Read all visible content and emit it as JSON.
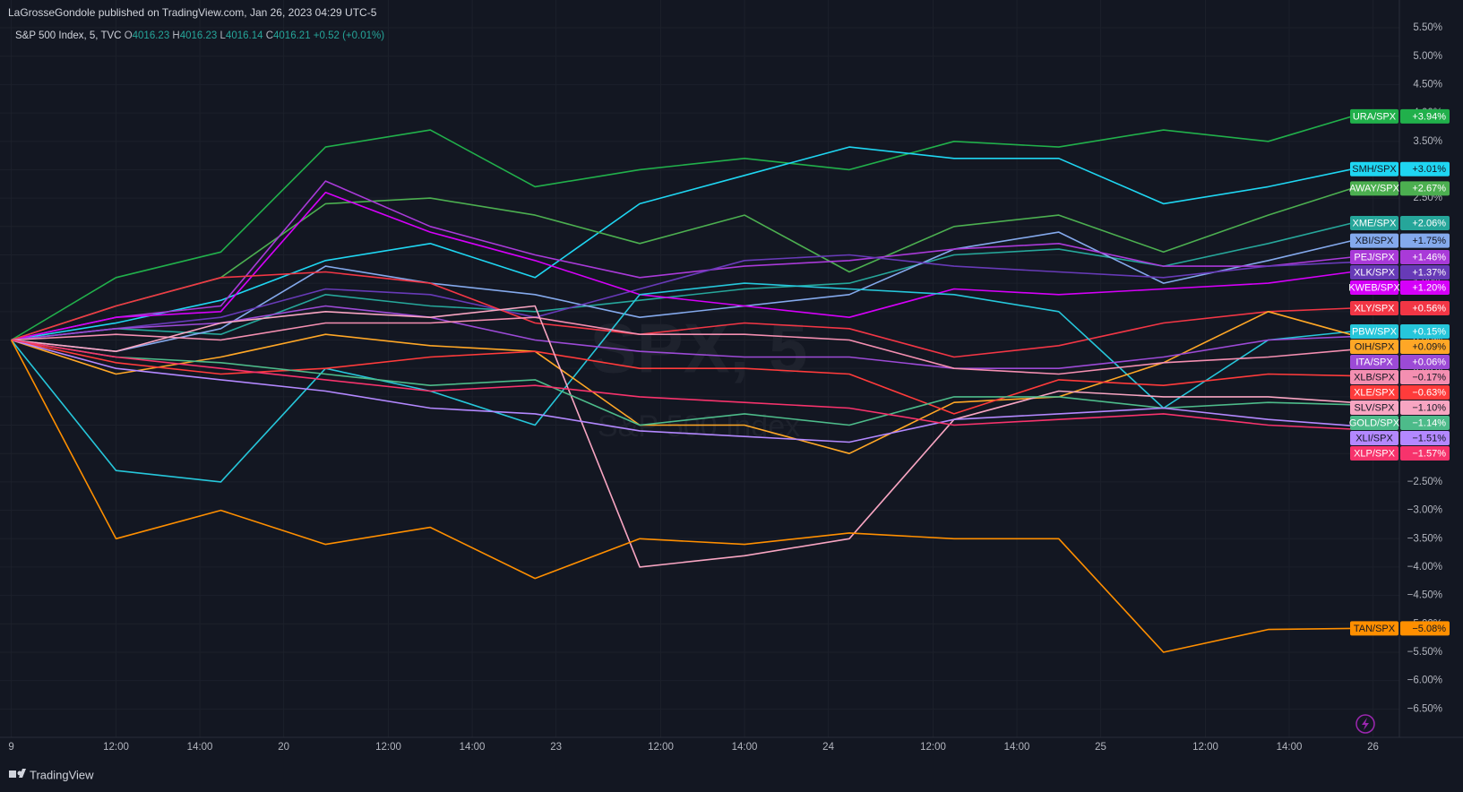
{
  "header": {
    "attribution": "LaGrosseGondole published on TradingView.com, Jan 26, 2023 04:29 UTC-5",
    "symbol": "S&P 500 Index, 5, TVC",
    "ohlc": [
      {
        "key": "O",
        "value": "4016.23"
      },
      {
        "key": "H",
        "value": "4016.23"
      },
      {
        "key": "L",
        "value": "4016.14"
      },
      {
        "key": "C",
        "value": "4016.21"
      }
    ],
    "change": "+0.52 (+0.01%)",
    "watermark": "SPX, 5",
    "watermark_sub": "S&P 500 Index"
  },
  "footer": {
    "brand": "TradingView"
  },
  "chart_data": {
    "type": "line",
    "x": [
      0,
      2.5,
      5,
      7.5,
      10,
      12.5,
      15,
      17.5,
      20,
      22.5,
      25,
      27.5,
      30,
      32
    ],
    "xlim": [
      -0.27,
      33.13
    ],
    "xticks": [
      {
        "value": 0,
        "label": "9"
      },
      {
        "value": 2.5,
        "label": "12:00"
      },
      {
        "value": 4.5,
        "label": "14:00"
      },
      {
        "value": 6.5,
        "label": "20"
      },
      {
        "value": 9,
        "label": "12:00"
      },
      {
        "value": 11,
        "label": "14:00"
      },
      {
        "value": 13,
        "label": "23"
      },
      {
        "value": 15.5,
        "label": "12:00"
      },
      {
        "value": 17.5,
        "label": "14:00"
      },
      {
        "value": 19.5,
        "label": "24"
      },
      {
        "value": 22,
        "label": "12:00"
      },
      {
        "value": 24,
        "label": "14:00"
      },
      {
        "value": 26,
        "label": "25"
      },
      {
        "value": 28.5,
        "label": "12:00"
      },
      {
        "value": 30.5,
        "label": "14:00"
      },
      {
        "value": 32.5,
        "label": "26"
      }
    ],
    "ylim": [
      -7.0,
      5.99
    ],
    "yticks": [
      {
        "value": 5.5,
        "label": "5.50%"
      },
      {
        "value": 5,
        "label": "5.00%"
      },
      {
        "value": 4.5,
        "label": "4.50%"
      },
      {
        "value": 4,
        "label": "4.00%"
      },
      {
        "value": 3.5,
        "label": "3.50%"
      },
      {
        "value": 3,
        "label": "3.00%"
      },
      {
        "value": 2.5,
        "label": "2.50%"
      },
      {
        "value": 2,
        "label": "2.00%"
      },
      {
        "value": 1.5,
        "label": "1.50%"
      },
      {
        "value": 1,
        "label": "1.00%"
      },
      {
        "value": 0.5,
        "label": "0.50%"
      },
      {
        "value": 0,
        "label": "0.00%"
      },
      {
        "value": -0.5,
        "label": "−0.50%"
      },
      {
        "value": -1,
        "label": "−1.00%"
      },
      {
        "value": -1.5,
        "label": "−1.50%"
      },
      {
        "value": -2,
        "label": "−2.00%"
      },
      {
        "value": -2.5,
        "label": "−2.50%"
      },
      {
        "value": -3,
        "label": "−3.00%"
      },
      {
        "value": -3.5,
        "label": "−3.50%"
      },
      {
        "value": -4,
        "label": "−4.00%"
      },
      {
        "value": -4.5,
        "label": "−4.50%"
      },
      {
        "value": -5,
        "label": "−5.00%"
      },
      {
        "value": -5.5,
        "label": "−5.50%"
      },
      {
        "value": -6,
        "label": "−6.00%"
      },
      {
        "value": -6.5,
        "label": "−6.50%"
      }
    ],
    "grid": true,
    "series": [
      {
        "name": "URA/SPX",
        "color": "#21b04b",
        "values": [
          0,
          1.1,
          1.55,
          3.4,
          3.7,
          2.7,
          3.0,
          3.2,
          3.0,
          3.5,
          3.4,
          3.7,
          3.5,
          3.94
        ],
        "value_labels": [
          null,
          null,
          null,
          null,
          null,
          null,
          null,
          null,
          null,
          null,
          null,
          null,
          null,
          "+3.94%"
        ]
      },
      {
        "name": "SMH/SPX",
        "color": "#1fd6f2",
        "values": [
          0,
          0.3,
          0.7,
          1.4,
          1.7,
          1.1,
          2.4,
          2.9,
          3.4,
          3.2,
          3.2,
          2.4,
          2.7,
          3.01
        ],
        "value_labels": [
          null,
          null,
          null,
          null,
          null,
          null,
          null,
          null,
          null,
          null,
          null,
          null,
          null,
          "+3.01%"
        ]
      },
      {
        "name": "AWAY/SPX",
        "color": "#4caf50",
        "values": [
          0,
          0.6,
          1.1,
          2.4,
          2.5,
          2.2,
          1.7,
          2.2,
          1.2,
          2.0,
          2.2,
          1.55,
          2.2,
          2.67
        ],
        "value_labels": [
          null,
          null,
          null,
          null,
          null,
          null,
          null,
          null,
          null,
          null,
          null,
          null,
          null,
          "+2.67%"
        ]
      },
      {
        "name": "XME/SPX",
        "color": "#26a69a",
        "values": [
          0,
          0.2,
          0.1,
          0.8,
          0.6,
          0.5,
          0.7,
          0.9,
          1.0,
          1.5,
          1.6,
          1.3,
          1.7,
          2.06
        ],
        "value_labels": [
          null,
          null,
          null,
          null,
          null,
          null,
          null,
          null,
          null,
          null,
          null,
          null,
          null,
          "+2.06%"
        ]
      },
      {
        "name": "XBI/SPX",
        "color": "#84a9ec",
        "values": [
          0,
          -0.2,
          0.2,
          1.3,
          1.0,
          0.8,
          0.4,
          0.6,
          0.8,
          1.6,
          1.9,
          1.0,
          1.4,
          1.75
        ],
        "value_labels": [
          null,
          null,
          null,
          null,
          null,
          null,
          null,
          null,
          null,
          null,
          null,
          null,
          null,
          "+1.75%"
        ]
      },
      {
        "name": "PEJ/SPX",
        "color": "#a93ad8",
        "values": [
          0,
          0.4,
          0.6,
          2.8,
          2.0,
          1.5,
          1.1,
          1.3,
          1.4,
          1.6,
          1.7,
          1.3,
          1.3,
          1.46
        ],
        "value_labels": [
          null,
          null,
          null,
          null,
          null,
          null,
          null,
          null,
          null,
          null,
          null,
          null,
          null,
          "+1.46%"
        ]
      },
      {
        "name": "XLK/SPX",
        "color": "#673ab7",
        "values": [
          0,
          0.2,
          0.4,
          0.9,
          0.8,
          0.4,
          0.9,
          1.4,
          1.5,
          1.3,
          1.2,
          1.1,
          1.3,
          1.37
        ],
        "value_labels": [
          null,
          null,
          null,
          null,
          null,
          null,
          null,
          null,
          null,
          null,
          null,
          null,
          null,
          "+1.37%"
        ]
      },
      {
        "name": "KWEB/SPX",
        "color": "#d500f9",
        "values": [
          0,
          0.4,
          0.5,
          2.6,
          1.9,
          1.4,
          0.8,
          0.6,
          0.4,
          0.9,
          0.8,
          0.9,
          1.0,
          1.2
        ],
        "value_labels": [
          null,
          null,
          null,
          null,
          null,
          null,
          null,
          null,
          null,
          null,
          null,
          null,
          null,
          "+1.20%"
        ]
      },
      {
        "name": "XLY/SPX",
        "color": "#f23645",
        "values": [
          0,
          0.6,
          1.1,
          1.2,
          1.0,
          0.3,
          0.1,
          0.3,
          0.2,
          -0.3,
          -0.1,
          0.3,
          0.5,
          0.56
        ],
        "value_labels": [
          null,
          null,
          null,
          null,
          null,
          null,
          null,
          null,
          null,
          null,
          null,
          null,
          null,
          "+0.56%"
        ]
      },
      {
        "name": "PBW/SPX",
        "color": "#26c6da",
        "values": [
          0,
          -2.3,
          -2.5,
          -0.5,
          -0.9,
          -1.5,
          0.8,
          1.0,
          0.9,
          0.8,
          0.5,
          -1.2,
          0.0,
          0.15
        ],
        "value_labels": [
          null,
          null,
          null,
          null,
          null,
          null,
          null,
          null,
          null,
          null,
          null,
          null,
          null,
          "+0.15%"
        ]
      },
      {
        "name": "OIH/SPX",
        "color": "#ffa726",
        "values": [
          0,
          -0.6,
          -0.3,
          0.1,
          -0.1,
          -0.2,
          -1.5,
          -1.5,
          -2.0,
          -1.1,
          -1.0,
          -0.4,
          0.5,
          0.09
        ],
        "value_labels": [
          null,
          null,
          null,
          null,
          null,
          null,
          null,
          null,
          null,
          null,
          null,
          null,
          null,
          "+0.09%"
        ]
      },
      {
        "name": "ITA/SPX",
        "color": "#9c4ad6",
        "values": [
          0,
          0.2,
          0.3,
          0.6,
          0.4,
          0.0,
          -0.2,
          -0.3,
          -0.3,
          -0.5,
          -0.5,
          -0.3,
          0.0,
          0.06
        ],
        "value_labels": [
          null,
          null,
          null,
          null,
          null,
          null,
          null,
          null,
          null,
          null,
          null,
          null,
          null,
          "+0.06%"
        ]
      },
      {
        "name": "XLB/SPX",
        "color": "#f48fb1",
        "values": [
          0,
          0.1,
          0.0,
          0.3,
          0.3,
          0.4,
          0.1,
          0.1,
          0.0,
          -0.5,
          -0.6,
          -0.4,
          -0.3,
          -0.17
        ],
        "value_labels": [
          null,
          null,
          null,
          null,
          null,
          null,
          null,
          null,
          null,
          null,
          null,
          null,
          null,
          "−0.17%"
        ]
      },
      {
        "name": "XLE/SPX",
        "color": "#ff3b3b",
        "values": [
          0,
          -0.4,
          -0.6,
          -0.5,
          -0.3,
          -0.2,
          -0.5,
          -0.5,
          -0.6,
          -1.3,
          -0.7,
          -0.8,
          -0.6,
          -0.63
        ],
        "value_labels": [
          null,
          null,
          null,
          null,
          null,
          null,
          null,
          null,
          null,
          null,
          null,
          null,
          null,
          "−0.63%"
        ]
      },
      {
        "name": "SLV/SPX",
        "color": "#f8a5c2",
        "values": [
          0,
          -0.2,
          0.3,
          0.5,
          0.4,
          0.6,
          -4.0,
          -3.8,
          -3.5,
          -1.4,
          -0.9,
          -1.0,
          -1.0,
          -1.1
        ],
        "value_labels": [
          null,
          null,
          null,
          null,
          null,
          null,
          null,
          null,
          null,
          null,
          null,
          null,
          null,
          "−1.10%"
        ]
      },
      {
        "name": "GOLD/SPX",
        "color": "#4dbb8a",
        "values": [
          0,
          -0.3,
          -0.4,
          -0.6,
          -0.8,
          -0.7,
          -1.5,
          -1.3,
          -1.5,
          -1.0,
          -1.0,
          -1.2,
          -1.1,
          -1.14
        ],
        "value_labels": [
          null,
          null,
          null,
          null,
          null,
          null,
          null,
          null,
          null,
          null,
          null,
          null,
          null,
          "−1.14%"
        ]
      },
      {
        "name": "XLI/SPX",
        "color": "#b388ff",
        "values": [
          0,
          -0.5,
          -0.7,
          -0.9,
          -1.2,
          -1.3,
          -1.6,
          -1.7,
          -1.8,
          -1.4,
          -1.3,
          -1.2,
          -1.4,
          -1.51
        ],
        "value_labels": [
          null,
          null,
          null,
          null,
          null,
          null,
          null,
          null,
          null,
          null,
          null,
          null,
          null,
          "−1.51%"
        ]
      },
      {
        "name": "XLP/SPX",
        "color": "#f7336c",
        "values": [
          0,
          -0.3,
          -0.5,
          -0.7,
          -0.9,
          -0.8,
          -1.0,
          -1.1,
          -1.2,
          -1.5,
          -1.4,
          -1.3,
          -1.5,
          -1.57
        ],
        "value_labels": [
          null,
          null,
          null,
          null,
          null,
          null,
          null,
          null,
          null,
          null,
          null,
          null,
          null,
          "−1.57%"
        ]
      },
      {
        "name": "TAN/SPX",
        "color": "#ff8f00",
        "values": [
          0,
          -3.5,
          -3.0,
          -3.6,
          -3.3,
          -4.2,
          -3.5,
          -3.6,
          -3.4,
          -3.5,
          -3.5,
          -5.5,
          -5.1,
          -5.08
        ],
        "value_labels": [
          null,
          null,
          null,
          null,
          null,
          null,
          null,
          null,
          null,
          null,
          null,
          null,
          null,
          "−5.08%"
        ]
      }
    ]
  }
}
